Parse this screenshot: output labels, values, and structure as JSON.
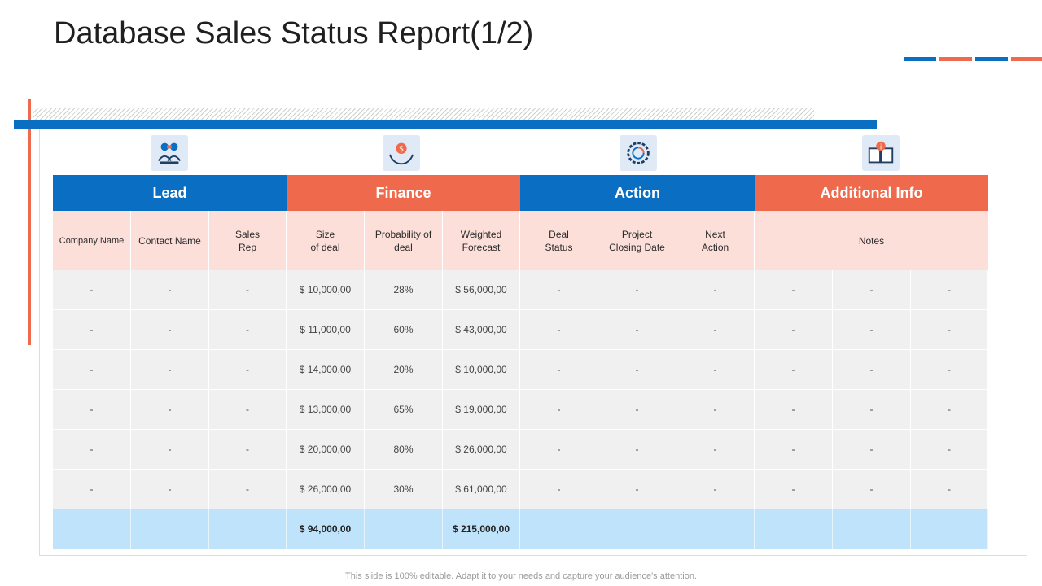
{
  "title": "Database Sales Status Report(1/2)",
  "colors": {
    "blue": "#0a6fc2",
    "orange": "#ef6a4c",
    "header_sub_bg": "#fbdfd8",
    "row_bg": "#f0f0f0",
    "total_bg": "#bfe3fb"
  },
  "icons": [
    "team-meeting-icon",
    "money-bag-hands-icon",
    "gear-refresh-icon",
    "info-book-icon"
  ],
  "groups": [
    "Lead",
    "Finance",
    "Action",
    "Additional  Info"
  ],
  "columns": [
    "Company Name",
    "Contact Name",
    "Sales\nRep",
    "Size\nof deal",
    "Probability of\ndeal",
    "Weighted\nForecast",
    "Deal\nStatus",
    "Project\nClosing Date",
    "Next\nAction",
    "Notes"
  ],
  "rows": [
    [
      "-",
      "-",
      "-",
      "$ 10,000,00",
      "28%",
      "$ 56,000,00",
      "-",
      "-",
      "-",
      "-",
      "-",
      "-"
    ],
    [
      "-",
      "-",
      "-",
      "$ 11,000,00",
      "60%",
      "$ 43,000,00",
      "-",
      "-",
      "-",
      "-",
      "-",
      "-"
    ],
    [
      "-",
      "-",
      "-",
      "$ 14,000,00",
      "20%",
      "$ 10,000,00",
      "-",
      "-",
      "-",
      "-",
      "-",
      "-"
    ],
    [
      "-",
      "-",
      "-",
      "$ 13,000,00",
      "65%",
      "$ 19,000,00",
      "-",
      "-",
      "-",
      "-",
      "-",
      "-"
    ],
    [
      "-",
      "-",
      "-",
      "$ 20,000,00",
      "80%",
      "$ 26,000,00",
      "-",
      "-",
      "-",
      "-",
      "-",
      "-"
    ],
    [
      "-",
      "-",
      "-",
      "$ 26,000,00",
      "30%",
      "$ 61,000,00",
      "-",
      "-",
      "-",
      "-",
      "-",
      "-"
    ]
  ],
  "totals": [
    "",
    "",
    "",
    "$ 94,000,00",
    "",
    "$ 215,000,00",
    "",
    "",
    "",
    "",
    "",
    ""
  ],
  "footer": "This slide is 100% editable. Adapt it to your needs and capture your audience's attention."
}
